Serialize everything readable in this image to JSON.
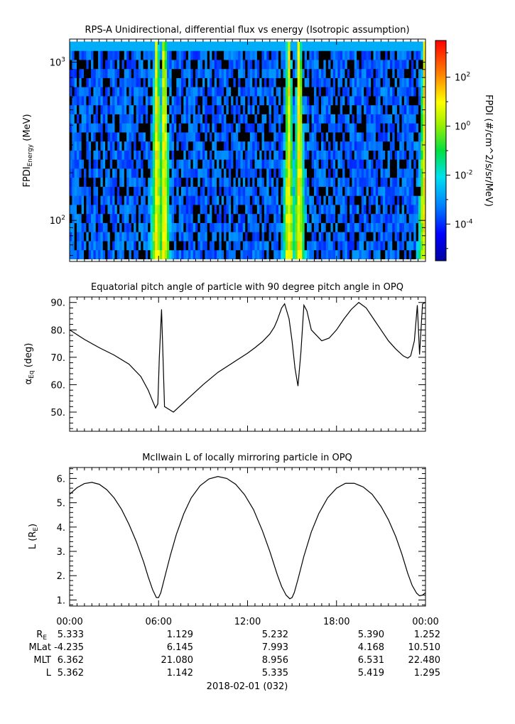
{
  "chart_data": [
    {
      "type": "heatmap",
      "title": "RPS-A Unidirectional, differential flux vs energy (Isotropic assumption)",
      "ylabel_main": "FPDI",
      "ylabel_sub": "Energy",
      "ylabel_unit": " (MeV)",
      "yscale": "log",
      "ylim": [
        55,
        1400
      ],
      "y_ticks": [
        {
          "label_base": "10",
          "label_exp": "2",
          "value": 100
        },
        {
          "label_base": "10",
          "label_exp": "3",
          "value": 1000
        }
      ],
      "xlim": [
        0,
        24
      ],
      "colorbar": {
        "label": "FPDI (#/cm^2/s/sr/MeV)",
        "scale": "log",
        "range_log10": [
          -5.5,
          3.5
        ],
        "colormap": "rainbow (blue to red)",
        "ticks": [
          {
            "label_base": "10",
            "label_exp": "2",
            "value_log10": 2
          },
          {
            "label_base": "10",
            "label_exp": "0",
            "value_log10": 0
          },
          {
            "label_base": "10",
            "label_exp": "-2",
            "value_log10": -2
          },
          {
            "label_base": "10",
            "label_exp": "-4",
            "value_log10": -4
          }
        ]
      },
      "flux_peaks_hours": [
        5.8,
        6.3,
        14.7,
        15.4,
        23.85
      ],
      "background_flux_log10": -3.5
    },
    {
      "type": "line",
      "title": "Equatorial pitch angle of particle with 90 degree pitch angle in OPQ",
      "ylabel_main": "α",
      "ylabel_sub": "Eq",
      "ylabel_unit": " (deg)",
      "ylim": [
        43,
        92
      ],
      "y_ticks": [
        "50.",
        "60.",
        "70.",
        "80.",
        "90."
      ],
      "xlim": [
        0,
        24
      ],
      "series": [
        {
          "x": [
            0,
            1,
            2,
            3,
            4,
            4.8,
            5.3,
            5.6,
            5.8,
            5.95,
            6.05,
            6.2,
            6.4,
            7,
            8,
            9,
            10,
            11,
            12,
            12.5,
            13,
            13.5,
            13.8,
            14,
            14.3,
            14.5,
            14.8,
            15.0,
            15.2,
            15.4,
            15.6,
            15.8,
            16.0,
            16.3,
            17.0,
            17.5,
            18.0,
            18.5,
            19.0,
            19.5,
            20.0,
            20.5,
            21.0,
            21.5,
            22.0,
            22.5,
            22.8,
            23.0,
            23.25,
            23.45,
            23.6,
            23.8,
            24.0
          ],
          "y": [
            80,
            76.5,
            73.5,
            70.8,
            67.5,
            63,
            58,
            54,
            51.5,
            53,
            70,
            87.5,
            52,
            50,
            55,
            60,
            64.5,
            68,
            71.5,
            73.5,
            75.7,
            78.5,
            81,
            83.5,
            88,
            89.5,
            84,
            76,
            66,
            59.5,
            72,
            89,
            87,
            80,
            76,
            77,
            80,
            84,
            87.5,
            90,
            88,
            84,
            80,
            76,
            73,
            70.5,
            69.7,
            70.5,
            76,
            89,
            71,
            89.5,
            90
          ]
        }
      ]
    },
    {
      "type": "line",
      "title": "McIlwain L of locally mirroring particle in OPQ",
      "ylabel_main": "L (R",
      "ylabel_sub": "E",
      "ylabel_unit": ")",
      "ylim": [
        0.75,
        6.45
      ],
      "y_ticks": [
        "1.",
        "2.",
        "3.",
        "4.",
        "5.",
        "6."
      ],
      "xlim": [
        0,
        24
      ],
      "x_ticks": [
        "00:00",
        "06:00",
        "12:00",
        "18:00",
        "00:00"
      ],
      "series": [
        {
          "x": [
            0,
            0.5,
            1,
            1.5,
            2,
            2.5,
            3,
            3.5,
            4,
            4.5,
            5,
            5.3,
            5.6,
            5.85,
            6.0,
            6.15,
            6.4,
            6.8,
            7.2,
            7.7,
            8.2,
            8.8,
            9.4,
            10.0,
            10.6,
            11.2,
            11.8,
            12.4,
            13.0,
            13.5,
            14.0,
            14.3,
            14.6,
            14.85,
            15.0,
            15.15,
            15.4,
            15.8,
            16.3,
            16.8,
            17.4,
            18.0,
            18.6,
            19.2,
            19.8,
            20.4,
            21.0,
            21.5,
            22.0,
            22.4,
            22.8,
            23.1,
            23.4,
            23.6,
            23.8,
            24.0
          ],
          "y": [
            5.35,
            5.62,
            5.79,
            5.84,
            5.76,
            5.54,
            5.2,
            4.73,
            4.12,
            3.4,
            2.55,
            1.95,
            1.42,
            1.1,
            1.1,
            1.3,
            1.9,
            2.85,
            3.7,
            4.55,
            5.2,
            5.7,
            5.98,
            6.08,
            6.0,
            5.76,
            5.33,
            4.72,
            3.85,
            3.0,
            2.05,
            1.55,
            1.2,
            1.05,
            1.1,
            1.3,
            1.85,
            2.8,
            3.8,
            4.55,
            5.2,
            5.6,
            5.8,
            5.8,
            5.65,
            5.35,
            4.85,
            4.3,
            3.6,
            2.9,
            2.1,
            1.6,
            1.28,
            1.17,
            1.2,
            1.3
          ]
        }
      ]
    }
  ],
  "ephemeris": {
    "row_labels": [
      {
        "main": "R",
        "sub": "E"
      },
      {
        "main": "MLat",
        "sub": ""
      },
      {
        "main": "MLT",
        "sub": ""
      },
      {
        "main": "L",
        "sub": ""
      }
    ],
    "rows": [
      [
        "5.333",
        "1.129",
        "5.232",
        "5.390",
        "1.252"
      ],
      [
        "-4.235",
        "6.145",
        "7.993",
        "4.168",
        "10.510"
      ],
      [
        "6.362",
        "21.080",
        "8.956",
        "6.531",
        "22.480"
      ],
      [
        "5.362",
        "1.142",
        "5.335",
        "5.419",
        "1.295"
      ]
    ],
    "date_label": "2018-02-01 (032)"
  }
}
